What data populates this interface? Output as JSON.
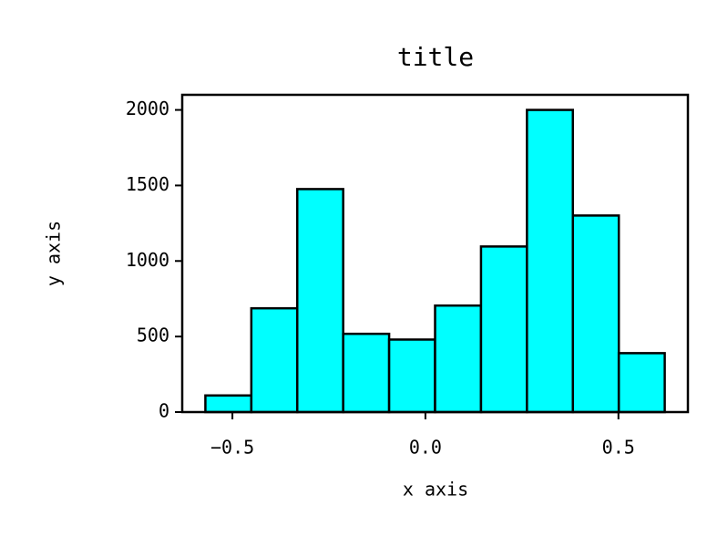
{
  "chart_data": {
    "type": "histogram",
    "title": "title",
    "x_label": "x axis",
    "y_label": "y axis",
    "bins": [
      -0.57,
      -0.451,
      -0.332,
      -0.213,
      -0.094,
      0.025,
      0.144,
      0.263,
      0.382,
      0.501,
      0.62
    ],
    "counts": [
      110,
      687,
      1476,
      518,
      480,
      705,
      1096,
      2000,
      1301,
      390
    ],
    "color": "#00ffff",
    "edgecolor": "#000000",
    "xlim": [
      -0.63,
      0.68
    ],
    "xticks": [
      {
        "value": -0.5,
        "label": "−0.5"
      },
      {
        "value": 0.0,
        "label": "0.0"
      },
      0.5
    ],
    "ylim": [
      0,
      2100
    ],
    "yticks": [
      0,
      500,
      1000,
      1500,
      2000
    ],
    "grid": false
  }
}
